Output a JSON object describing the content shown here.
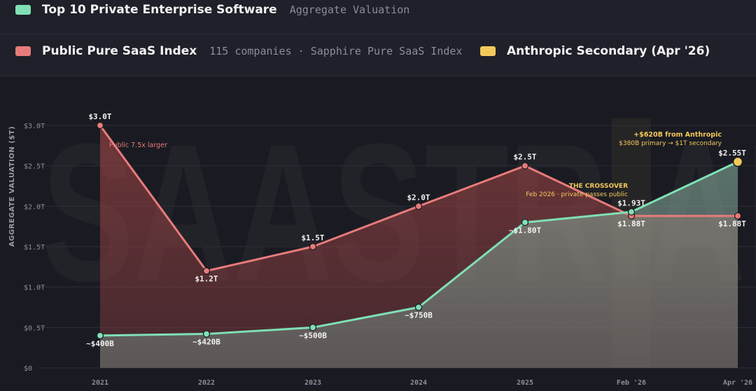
{
  "legend": {
    "private": {
      "label": "Top 10 Private Enterprise Software",
      "sub": "Aggregate Valuation",
      "color": "#7fe0b5"
    },
    "public": {
      "label": "Public Pure SaaS Index",
      "sub": "115 companies · Sapphire Pure SaaS Index",
      "color": "#e87b7b"
    },
    "anthropic": {
      "label": "Anthropic Secondary (Apr '26)",
      "color": "#f3c95a"
    }
  },
  "watermark": "SAASTR.AI",
  "chart_data": {
    "type": "line",
    "categories": [
      "2021",
      "2022",
      "2023",
      "2024",
      "2025",
      "Feb '26",
      "Apr '26"
    ],
    "ylabel": "AGGREGATE VALUATION ($T)",
    "ylim": [
      0,
      3.0
    ],
    "yticks": [
      {
        "v": 0,
        "label": "$0"
      },
      {
        "v": 0.5,
        "label": "$0.5T"
      },
      {
        "v": 1.0,
        "label": "$1.0T"
      },
      {
        "v": 1.5,
        "label": "$1.5T"
      },
      {
        "v": 2.0,
        "label": "$2.0T"
      },
      {
        "v": 2.5,
        "label": "$2.5T"
      },
      {
        "v": 3.0,
        "label": "$3.0T"
      }
    ],
    "series": [
      {
        "name": "Public Pure SaaS Index",
        "color": "#e87b7b",
        "values": [
          3.0,
          1.2,
          1.5,
          2.0,
          2.5,
          1.88,
          1.88
        ],
        "labels": [
          "$3.0T",
          "$1.2T",
          "$1.5T",
          "$2.0T",
          "$2.5T",
          "$1.88T",
          "$1.88T"
        ],
        "label_pos": [
          "above",
          "below",
          "above",
          "above",
          "above",
          "below",
          "below"
        ]
      },
      {
        "name": "Top 10 Private Enterprise Software",
        "color": "#7fe0b5",
        "values": [
          0.4,
          0.42,
          0.5,
          0.75,
          1.8,
          1.93,
          2.55
        ],
        "labels": [
          "~$400B",
          "~$420B",
          "~$500B",
          "~$750B",
          "~$1.80T",
          "$1.93T",
          "$2.55T"
        ],
        "label_pos": [
          "below",
          "below",
          "below",
          "below",
          "below",
          "above",
          "above"
        ]
      }
    ],
    "annotations": {
      "public_gap": "Public 7.5x larger",
      "crossover_title": "THE CROSSOVER",
      "crossover_sub": "Feb 2026 · private passes public",
      "anthropic_title": "+$620B from Anthropic",
      "anthropic_sub": "$380B primary → $1T secondary"
    },
    "highlight_category": "Feb '26"
  }
}
